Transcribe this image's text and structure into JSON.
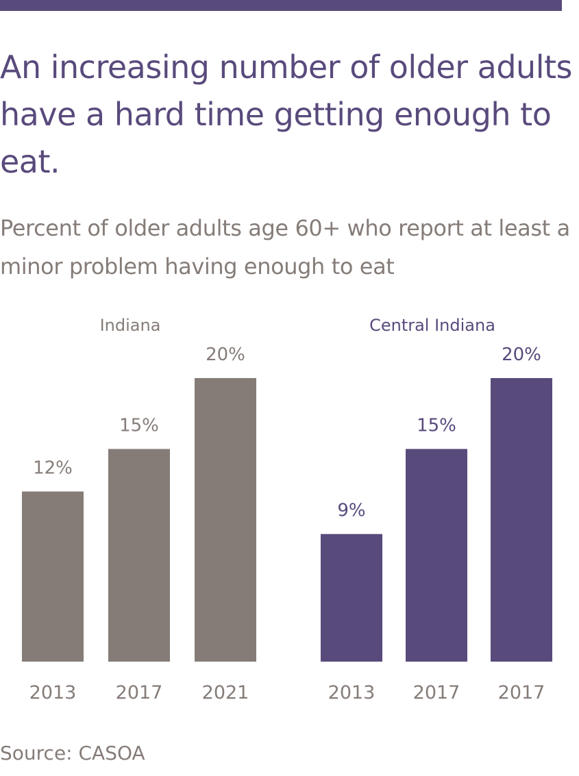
{
  "header": {
    "title": "An increasing number of older adults have a hard time getting enough to eat.",
    "subtitle": "Percent of older adults age 60+ who report at least a minor problem having enough to eat",
    "top_bar_color": "#594a7c"
  },
  "footer": {
    "source": "Source: CASOA"
  },
  "chart_data": [
    {
      "type": "bar",
      "title": "Indiana",
      "categories": [
        "2013",
        "2017",
        "2021"
      ],
      "values": [
        12,
        15,
        20
      ],
      "value_labels": [
        "12%",
        "15%",
        "20%"
      ],
      "unit": "%",
      "ylim": [
        0,
        20
      ],
      "grid": false,
      "bar_color": "#857c78",
      "title_color": "#857c78",
      "label_color": "#857c78"
    },
    {
      "type": "bar",
      "title": "Central Indiana",
      "categories": [
        "2013",
        "2017",
        "2017"
      ],
      "values": [
        9,
        15,
        20
      ],
      "value_labels": [
        "9%",
        "15%",
        "20%"
      ],
      "unit": "%",
      "ylim": [
        0,
        20
      ],
      "grid": false,
      "bar_color": "#594a7c",
      "title_color": "#594a7c",
      "label_color": "#594a7c"
    }
  ]
}
